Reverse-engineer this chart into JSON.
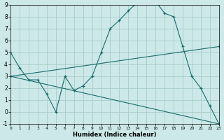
{
  "xlabel": "Humidex (Indice chaleur)",
  "bg_color": "#cce8e8",
  "grid_color": "#aacccc",
  "line_color": "#1a6b6b",
  "xlim": [
    0,
    23
  ],
  "ylim": [
    -1,
    9
  ],
  "xticks": [
    0,
    1,
    2,
    3,
    4,
    5,
    6,
    7,
    8,
    9,
    10,
    11,
    12,
    13,
    14,
    15,
    16,
    17,
    18,
    19,
    20,
    21,
    22,
    23
  ],
  "yticks": [
    -1,
    0,
    1,
    2,
    3,
    4,
    5,
    6,
    7,
    8,
    9
  ],
  "curve1_x": [
    0,
    1,
    2,
    3,
    4,
    5,
    6,
    7,
    8,
    9,
    10,
    11,
    12,
    13,
    14,
    15,
    16,
    17,
    18,
    19,
    20,
    21,
    22,
    23
  ],
  "curve1_y": [
    5.0,
    3.7,
    2.7,
    2.7,
    1.5,
    0.0,
    3.0,
    1.8,
    2.2,
    3.0,
    5.0,
    7.0,
    7.7,
    8.5,
    9.2,
    9.2,
    9.3,
    8.3,
    8.0,
    5.5,
    3.0,
    2.0,
    0.5,
    -1.0
  ],
  "curve2_x": [
    0,
    23
  ],
  "curve2_y": [
    3.0,
    5.5
  ],
  "curve3_x": [
    0,
    23
  ],
  "curve3_y": [
    3.0,
    -1.0
  ]
}
